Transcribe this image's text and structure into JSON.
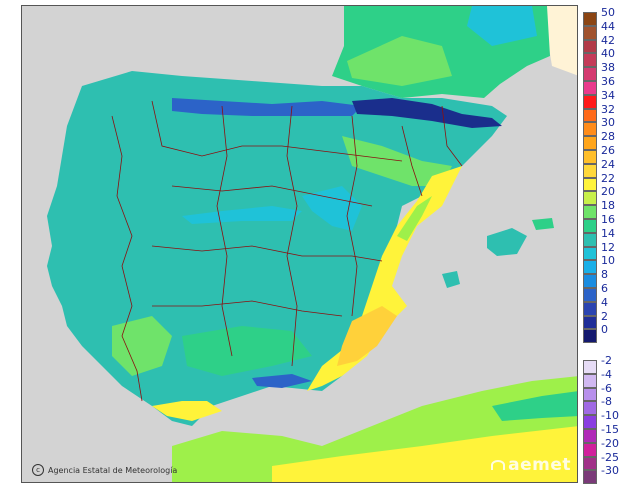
{
  "map": {
    "credit": "Agencia Estatal de Meteorología",
    "credit_icon": "copyright-icon",
    "logo": "aemet",
    "colors": {
      "sea": "#d3d3d3",
      "france": "#fff3d6",
      "land_main": "#2ebfb0",
      "land_dark": "#26a89e",
      "cool": "#1fc2d8",
      "cold_blue": "#2c63c8",
      "mountain_dark": "#1a2e8c",
      "light_green": "#6fe36a",
      "bright_green": "#9ef04a",
      "yellow": "#fff33a",
      "yellow_orange": "#ffd13a",
      "orange": "#ffbf2a",
      "border": "#8b1010"
    }
  },
  "legend": {
    "warm": [
      {
        "label": "50",
        "color": "#8b4513"
      },
      {
        "label": "44",
        "color": "#a0522d"
      },
      {
        "label": "42",
        "color": "#b23a48"
      },
      {
        "label": "40",
        "color": "#c43a58"
      },
      {
        "label": "38",
        "color": "#d43a70"
      },
      {
        "label": "36",
        "color": "#e93a8c"
      },
      {
        "label": "34",
        "color": "#ff1a1a"
      },
      {
        "label": "32",
        "color": "#ff6a1a"
      },
      {
        "label": "30",
        "color": "#ff8c1a"
      },
      {
        "label": "28",
        "color": "#ffa51a"
      },
      {
        "label": "26",
        "color": "#ffbf2a"
      },
      {
        "label": "24",
        "color": "#ffd83a"
      },
      {
        "label": "22",
        "color": "#fff33a"
      },
      {
        "label": "20",
        "color": "#c8f04a"
      },
      {
        "label": "18",
        "color": "#6fe36a"
      },
      {
        "label": "16",
        "color": "#2ed088"
      },
      {
        "label": "14",
        "color": "#2ebfb0"
      },
      {
        "label": "12",
        "color": "#1fc2d8"
      },
      {
        "label": "10",
        "color": "#1ab0e8"
      },
      {
        "label": "8",
        "color": "#1a8ce0"
      },
      {
        "label": "6",
        "color": "#2c63c8"
      },
      {
        "label": "4",
        "color": "#2a44b0"
      },
      {
        "label": "2",
        "color": "#1f2e98"
      },
      {
        "label": "0",
        "color": "#14196e"
      }
    ],
    "cold": [
      {
        "label": "-2",
        "color": "#e6dcf5"
      },
      {
        "label": "-4",
        "color": "#d0b8f0"
      },
      {
        "label": "-6",
        "color": "#b890ec"
      },
      {
        "label": "-8",
        "color": "#a06ae4"
      },
      {
        "label": "-10",
        "color": "#8a3ee0"
      },
      {
        "label": "-15",
        "color": "#b02ab8"
      },
      {
        "label": "-20",
        "color": "#d0209c"
      },
      {
        "label": "-25",
        "color": "#a03088"
      },
      {
        "label": "-30",
        "color": "#7a3a78"
      }
    ]
  }
}
